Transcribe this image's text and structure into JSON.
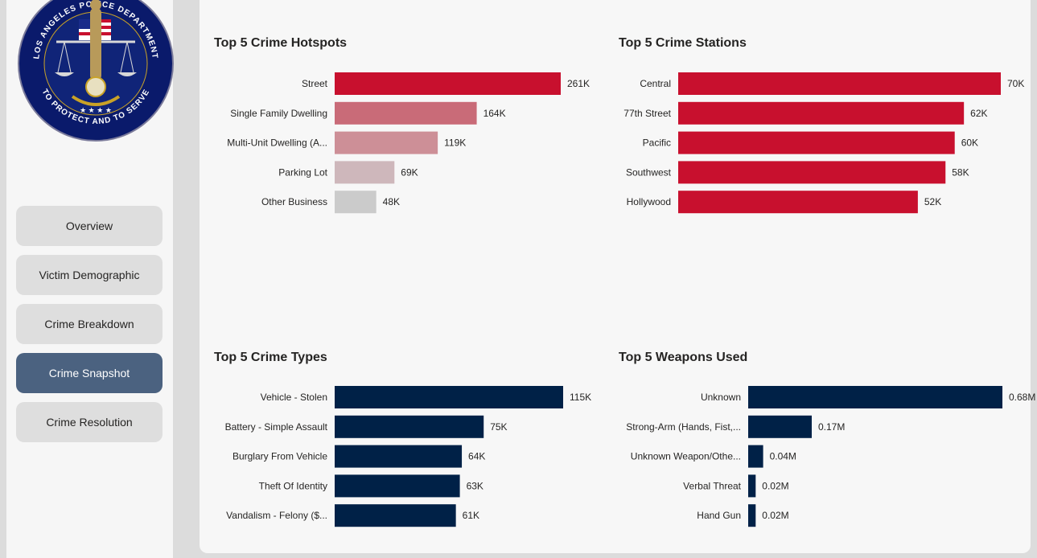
{
  "nav": {
    "items": [
      {
        "label": "Overview",
        "active": false
      },
      {
        "label": "Victim Demographic",
        "active": false
      },
      {
        "label": "Crime Breakdown",
        "active": false
      },
      {
        "label": "Crime Snapshot",
        "active": true
      },
      {
        "label": "Crime Resolution",
        "active": false
      }
    ]
  },
  "logo": {
    "arc_text": "LOS ANGELES POLICE DEPARTMENT",
    "motto": "TO PROTECT AND TO SERVE",
    "colors": {
      "ring": "#0a1a6b",
      "gold": "#c9a227"
    }
  },
  "colors": {
    "red": "#c8102e",
    "navy": "#002147",
    "active_nav": "#4b6280"
  },
  "chart_data": [
    {
      "type": "bar",
      "orientation": "horizontal",
      "title": "Top 5 Crime Hotspots",
      "categories": [
        "Street",
        "Single Family Dwelling",
        "Multi-Unit Dwelling (A...",
        "Parking Lot",
        "Other Business"
      ],
      "values": [
        261000,
        164000,
        119000,
        69000,
        48000
      ],
      "value_labels": [
        "261K",
        "164K",
        "119K",
        "69K",
        "48K"
      ],
      "bar_colors": [
        "#c8102e",
        "#c96b78",
        "#cd8f97",
        "#ceb7bb",
        "#cbcbcb"
      ]
    },
    {
      "type": "bar",
      "orientation": "horizontal",
      "title": "Top 5 Crime Stations",
      "categories": [
        "Central",
        "77th Street",
        "Pacific",
        "Southwest",
        "Hollywood"
      ],
      "values": [
        70000,
        62000,
        60000,
        58000,
        52000
      ],
      "value_labels": [
        "70K",
        "62K",
        "60K",
        "58K",
        "52K"
      ],
      "bar_colors": [
        "#c8102e",
        "#c8102e",
        "#c8102e",
        "#c8102e",
        "#c8102e"
      ]
    },
    {
      "type": "bar",
      "orientation": "horizontal",
      "title": "Top 5 Crime Types",
      "categories": [
        "Vehicle - Stolen",
        "Battery - Simple Assault",
        "Burglary From Vehicle",
        "Theft Of Identity",
        "Vandalism - Felony ($..."
      ],
      "values": [
        115000,
        75000,
        64000,
        63000,
        61000
      ],
      "value_labels": [
        "115K",
        "75K",
        "64K",
        "63K",
        "61K"
      ],
      "bar_colors": [
        "#002147",
        "#002147",
        "#002147",
        "#002147",
        "#002147"
      ]
    },
    {
      "type": "bar",
      "orientation": "horizontal",
      "title": "Top 5 Weapons Used",
      "categories": [
        "Unknown",
        "Strong-Arm (Hands, Fist,...",
        "Unknown Weapon/Othe...",
        "Verbal Threat",
        "Hand Gun"
      ],
      "values": [
        680000,
        170000,
        40000,
        20000,
        20000
      ],
      "value_labels": [
        "0.68M",
        "0.17M",
        "0.04M",
        "0.02M",
        "0.02M"
      ],
      "bar_colors": [
        "#002147",
        "#002147",
        "#002147",
        "#002147",
        "#002147"
      ]
    }
  ]
}
